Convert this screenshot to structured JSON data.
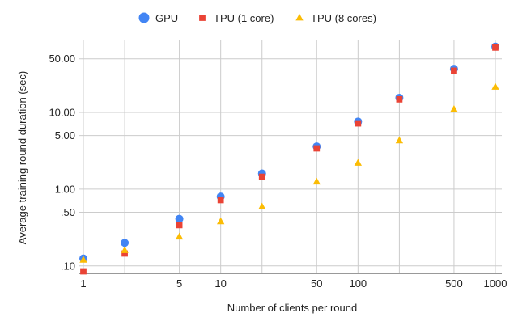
{
  "chart_data": {
    "type": "scatter",
    "xlabel": "Number of clients per round",
    "ylabel": "Average training round duration (sec)",
    "x_scale": "log",
    "y_scale": "log",
    "xlim": [
      1,
      1000
    ],
    "ylim": [
      0.08,
      75
    ],
    "x_ticks": [
      {
        "value": 1,
        "label": "1"
      },
      {
        "value": 5,
        "label": "5"
      },
      {
        "value": 10,
        "label": "10"
      },
      {
        "value": 50,
        "label": "50"
      },
      {
        "value": 100,
        "label": "100"
      },
      {
        "value": 500,
        "label": "500"
      },
      {
        "value": 1000,
        "label": "1000"
      }
    ],
    "x_gridlines": [
      1,
      2,
      5,
      10,
      20,
      50,
      100,
      200,
      500,
      1000
    ],
    "y_ticks": [
      {
        "value": 0.1,
        "label": ".10"
      },
      {
        "value": 0.5,
        "label": ".50"
      },
      {
        "value": 1,
        "label": "1.00"
      },
      {
        "value": 5,
        "label": "5.00"
      },
      {
        "value": 10,
        "label": "10.00"
      },
      {
        "value": 50,
        "label": "50.00"
      }
    ],
    "grid": true,
    "legend_position": "top",
    "series": [
      {
        "name": "GPU",
        "marker": "circle",
        "color": "#4285F4",
        "points": [
          [
            1,
            0.125
          ],
          [
            2,
            0.2
          ],
          [
            5,
            0.41
          ],
          [
            10,
            0.8
          ],
          [
            20,
            1.6
          ],
          [
            50,
            3.6
          ],
          [
            100,
            7.6
          ],
          [
            200,
            15.5
          ],
          [
            500,
            37
          ],
          [
            1000,
            72
          ]
        ]
      },
      {
        "name": "TPU (1 core)",
        "marker": "square",
        "color": "#EA4335",
        "points": [
          [
            1,
            0.085
          ],
          [
            2,
            0.145
          ],
          [
            5,
            0.34
          ],
          [
            10,
            0.72
          ],
          [
            20,
            1.45
          ],
          [
            50,
            3.4
          ],
          [
            100,
            7.2
          ],
          [
            200,
            14.8
          ],
          [
            500,
            35
          ],
          [
            1000,
            70
          ]
        ]
      },
      {
        "name": "TPU (8 cores)",
        "marker": "triangle",
        "color": "#FBBC04",
        "points": [
          [
            1,
            0.12
          ],
          [
            2,
            0.16
          ],
          [
            5,
            0.24
          ],
          [
            10,
            0.38
          ],
          [
            20,
            0.59
          ],
          [
            50,
            1.25
          ],
          [
            100,
            2.2
          ],
          [
            200,
            4.3
          ],
          [
            500,
            11
          ],
          [
            1000,
            21.5
          ]
        ]
      }
    ]
  }
}
